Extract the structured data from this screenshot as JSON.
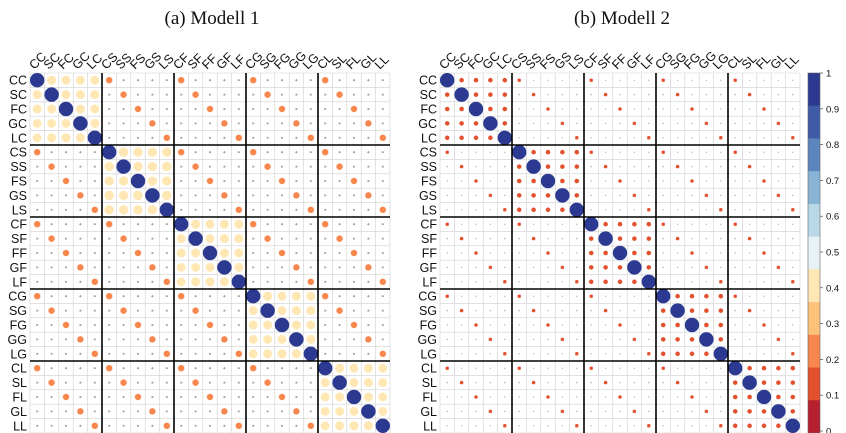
{
  "chart_data": [
    {
      "type": "heatmap",
      "title": "(a) Modell 1",
      "labels": [
        "CC",
        "SC",
        "FC",
        "GC",
        "LC",
        "CS",
        "SS",
        "FS",
        "GS",
        "LS",
        "CF",
        "SF",
        "FF",
        "GF",
        "LF",
        "CG",
        "SG",
        "FG",
        "GG",
        "LG",
        "CL",
        "SL",
        "FL",
        "GL",
        "LL"
      ],
      "block_size": 5,
      "value_range": [
        0,
        1
      ],
      "grid": true,
      "rule": "diagonal 1.0; off-diagonal within a 5x5 block 0.38; same position in different blocks 0.2; all other cells 0.02",
      "diagonal_value": 1.0,
      "within_block_value": 0.38,
      "matched_position_value": 0.2,
      "other_value": 0.02,
      "within_block_value_for_block_CS": 0.42
    },
    {
      "type": "heatmap",
      "title": "(b) Modell 2",
      "labels": [
        "CC",
        "SC",
        "FC",
        "GC",
        "LC",
        "CS",
        "SS",
        "FS",
        "GS",
        "LS",
        "CF",
        "SF",
        "FF",
        "GF",
        "LF",
        "CG",
        "SG",
        "FG",
        "GG",
        "LG",
        "CL",
        "SL",
        "FL",
        "GL",
        "LL"
      ],
      "block_size": 5,
      "value_range": [
        0,
        1
      ],
      "grid": true,
      "rule": "diagonal 1.0; off-diagonal within a 5x5 block 0.1; same position in different blocks 0.06; all other cells 0.0",
      "diagonal_value": 1.0,
      "within_block_value": 0.1,
      "matched_position_value": 0.06,
      "other_value": 0.0
    }
  ],
  "colorbar": {
    "ticks": [
      "1",
      "0.9",
      "0.8",
      "0.7",
      "0.6",
      "0.5",
      "0.4",
      "0.3",
      "0.2",
      "0.1",
      "0"
    ],
    "colors": [
      "#2B3990",
      "#3F5AA6",
      "#5B86BE",
      "#88B3D4",
      "#B8D8E8",
      "#E6F2F5",
      "#FFE7B3",
      "#FDC27A",
      "#F8874F",
      "#E2502E",
      "#B7202F"
    ]
  }
}
